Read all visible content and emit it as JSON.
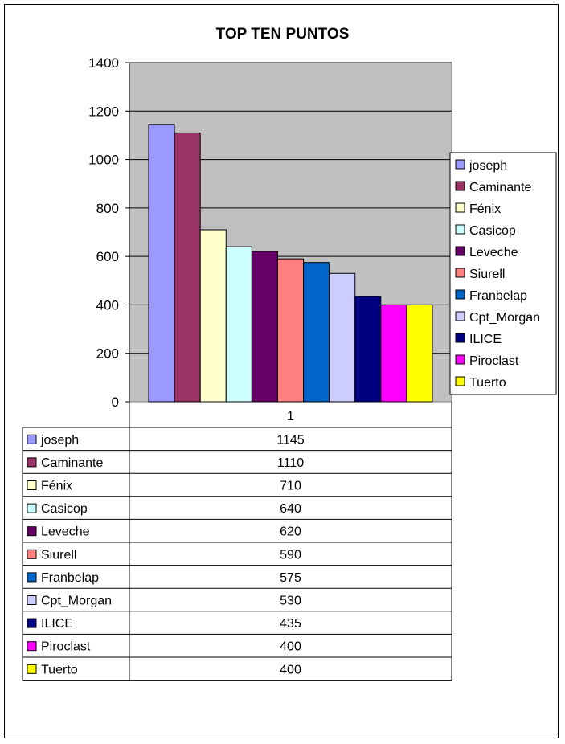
{
  "chart_data": {
    "type": "bar",
    "title": "TOP TEN PUNTOS",
    "categories": [
      "1"
    ],
    "ylim": [
      0,
      1400
    ],
    "yticks": [
      0,
      200,
      400,
      600,
      800,
      1000,
      1200,
      1400
    ],
    "grid": true,
    "legend_position": "right",
    "series": [
      {
        "name": "joseph",
        "values": [
          1145
        ],
        "color": "#9999ff"
      },
      {
        "name": "Caminante",
        "values": [
          1110
        ],
        "color": "#993366"
      },
      {
        "name": "Fénix",
        "values": [
          710
        ],
        "color": "#ffffcc"
      },
      {
        "name": "Casicop",
        "values": [
          640
        ],
        "color": "#ccffff"
      },
      {
        "name": "Leveche",
        "values": [
          620
        ],
        "color": "#660066"
      },
      {
        "name": "Siurell",
        "values": [
          590
        ],
        "color": "#ff8080"
      },
      {
        "name": "Franbelap",
        "values": [
          575
        ],
        "color": "#0066cc"
      },
      {
        "name": "Cpt_Morgan",
        "values": [
          530
        ],
        "color": "#ccccff"
      },
      {
        "name": "ILICE",
        "values": [
          435
        ],
        "color": "#000080"
      },
      {
        "name": "Piroclast",
        "values": [
          400
        ],
        "color": "#ff00ff"
      },
      {
        "name": "Tuerto",
        "values": [
          400
        ],
        "color": "#ffff00"
      }
    ],
    "plot_background": "#c0c0c0"
  }
}
